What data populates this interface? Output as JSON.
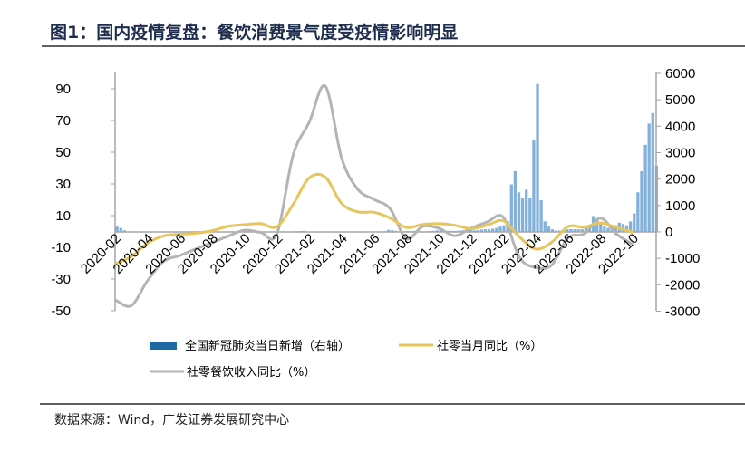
{
  "title": "图1：国内疫情复盘：餐饮消费景气度受疫情影响明显",
  "source": "数据来源：Wind，广发证券发展研究中心",
  "colors": {
    "bars": "#6fa3d2",
    "retail": "#e6c65c",
    "catering": "#b4b4b4",
    "title": "#1f2d4d"
  },
  "chart_data": {
    "type": "line",
    "title": "国内疫情复盘：餐饮消费景气度受疫情影响明显",
    "months": [
      "2020-02",
      "2020-03",
      "2020-04",
      "2020-05",
      "2020-06",
      "2020-07",
      "2020-08",
      "2020-09",
      "2020-10",
      "2020-11",
      "2020-12",
      "2021-01",
      "2021-02",
      "2021-03",
      "2021-04",
      "2021-05",
      "2021-06",
      "2021-07",
      "2021-08",
      "2021-09",
      "2021-10",
      "2021-11",
      "2021-12",
      "2022-01",
      "2022-02",
      "2022-03",
      "2022-04",
      "2022-05",
      "2022-06",
      "2022-07",
      "2022-08",
      "2022-09",
      "2022-10"
    ],
    "x_tick_labels": [
      "2020-02",
      "2020-04",
      "2020-06",
      "2020-08",
      "2020-10",
      "2020-12",
      "2021-02",
      "2021-04",
      "2021-06",
      "2021-08",
      "2021-10",
      "2021-12",
      "2022-02",
      "2022-04",
      "2022-06",
      "2022-08",
      "2022-10"
    ],
    "left_axis": {
      "ticks": [
        90,
        70,
        50,
        30,
        10,
        -10,
        -30,
        -50
      ],
      "range": [
        -50,
        100
      ]
    },
    "right_axis": {
      "ticks": [
        6000,
        5000,
        4000,
        3000,
        2000,
        1000,
        0,
        -1000,
        -2000,
        -3000
      ],
      "range": [
        -3000,
        6000
      ]
    },
    "series": [
      {
        "name": "社零当月同比（%）",
        "axis": "left",
        "type": "line",
        "values": [
          -20.5,
          -15.8,
          -7.5,
          -2.8,
          -1.8,
          -1.1,
          0.5,
          3.3,
          4.3,
          5.0,
          3.0,
          17,
          33.8,
          34.2,
          17.7,
          12.4,
          12.1,
          8.5,
          2.5,
          4.4,
          4.9,
          3.9,
          1.7,
          4,
          6.7,
          -3.5,
          -11.1,
          -6.7,
          3.1,
          2.7,
          5.4,
          2.5,
          -0.5
        ]
      },
      {
        "name": "社零餐饮收入同比（%）",
        "axis": "left",
        "type": "line",
        "values": [
          -43.1,
          -46.8,
          -31.1,
          -18.9,
          -15.2,
          -11.0,
          -7.0,
          -2.9,
          0.8,
          -0.6,
          -1.5,
          48,
          68.9,
          91.6,
          46.4,
          26.6,
          20.2,
          14.3,
          -4.5,
          3.1,
          2.0,
          -2.7,
          2.1,
          6,
          8.9,
          -16.4,
          -22.7,
          -21.1,
          -4.0,
          -1.5,
          8.4,
          -1.7,
          -8.1
        ]
      },
      {
        "name": "全国新冠肺炎当日新增（右轴）",
        "axis": "right",
        "type": "bar",
        "resolution": "weekly from 2020-02",
        "values": [
          200,
          150,
          60,
          20,
          10,
          10,
          10,
          10,
          10,
          10,
          10,
          10,
          10,
          10,
          10,
          10,
          10,
          10,
          10,
          10,
          10,
          10,
          30,
          40,
          20,
          10,
          10,
          10,
          10,
          10,
          10,
          10,
          10,
          10,
          10,
          10,
          10,
          10,
          10,
          10,
          10,
          10,
          10,
          20,
          20,
          20,
          10,
          10,
          30,
          30,
          40,
          20,
          10,
          10,
          10,
          10,
          10,
          10,
          10,
          10,
          10,
          10,
          10,
          10,
          10,
          10,
          10,
          10,
          10,
          10,
          10,
          20,
          30,
          80,
          60,
          40,
          20,
          20,
          30,
          30,
          40,
          30,
          20,
          20,
          30,
          40,
          60,
          60,
          50,
          40,
          40,
          40,
          50,
          60,
          80,
          80,
          60,
          70,
          90,
          100,
          100,
          120,
          150,
          200,
          250,
          400,
          1800,
          2300,
          1500,
          1300,
          1600,
          1300,
          3500,
          5600,
          1200,
          400,
          200,
          100,
          50,
          50,
          100,
          100,
          100,
          100,
          100,
          100,
          150,
          200,
          600,
          500,
          300,
          200,
          150,
          200,
          250,
          350,
          300,
          250,
          400,
          700,
          1500,
          2300,
          3300,
          4100,
          4500,
          2500
        ]
      }
    ],
    "legend": [
      "全国新冠肺炎当日新增（右轴）",
      "社零当月同比（%）",
      "社零餐饮收入同比（%）"
    ],
    "legend_position": "bottom",
    "grid": false
  }
}
